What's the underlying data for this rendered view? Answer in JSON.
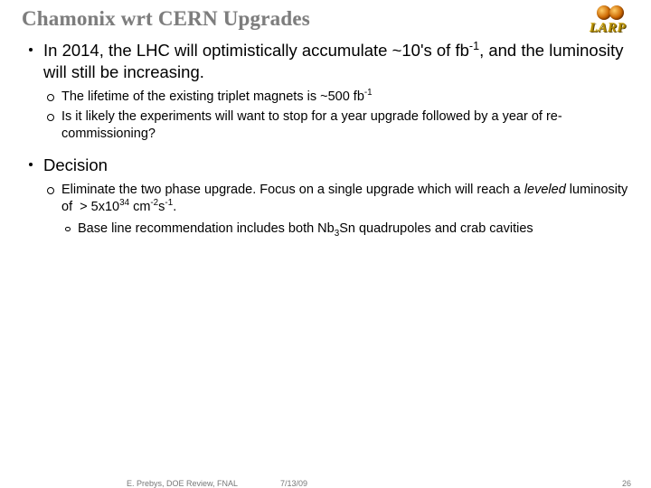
{
  "title": "Chamonix wrt CERN Upgrades",
  "logo": {
    "label": "LARP"
  },
  "bullets": [
    {
      "text_html": "In 2014, the LHC will optimistically accumulate ~10's of fb<sup>-1</sup>, and the luminosity will still be increasing.",
      "sub": [
        {
          "text_html": "The lifetime of the existing triplet magnets is ~500 fb<sup>-1</sup>"
        },
        {
          "text_html": "Is it likely the experiments will want to stop for a year upgrade followed by a year of re-commissioning?"
        }
      ]
    },
    {
      "text_html": "Decision",
      "sub": [
        {
          "text_html": "Eliminate the two phase upgrade. Focus on a single upgrade which will reach a <span class=\"italic\">leveled</span> luminosity of &nbsp;&gt; 5x10<sup>34</sup> cm<sup>-2</sup>s<sup>-1</sup>.",
          "sub": [
            {
              "text_html": "Base line recommendation includes both Nb<sub>3</sub>Sn quadrupoles and crab cavities"
            }
          ]
        }
      ]
    }
  ],
  "footer": {
    "left": "E. Prebys, DOE Review, FNAL",
    "mid": "7/13/09",
    "page": "26"
  },
  "colors": {
    "title": "#7d7d7d",
    "text": "#000000",
    "footer": "#777777",
    "bg": "#ffffff"
  },
  "fontsizes": {
    "title": 23,
    "lvl1": 18.5,
    "lvl2": 14.5,
    "lvl3": 14.5,
    "footer": 9
  }
}
